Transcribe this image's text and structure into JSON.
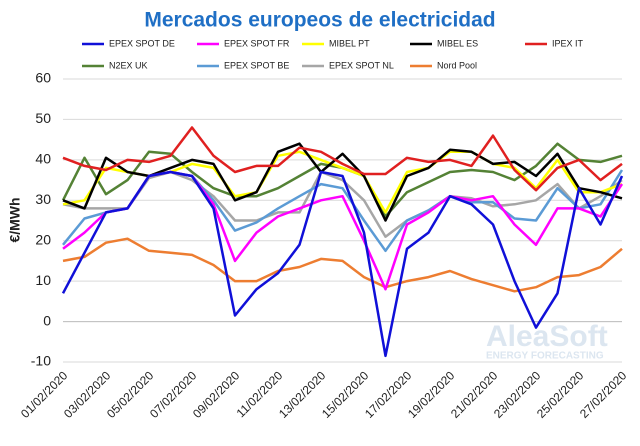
{
  "chart_data": {
    "type": "line",
    "title": "Mercados europeos de electricidad",
    "y_label": "€/MWh",
    "annotations": [
      "AleaSoft",
      "ENERGY FORECASTING"
    ],
    "categories": [
      "01/02/2020",
      null,
      "03/02/2020",
      null,
      "05/02/2020",
      null,
      "07/02/2020",
      null,
      "09/02/2020",
      null,
      "11/02/2020",
      null,
      "13/02/2020",
      null,
      "15/02/2020",
      null,
      "17/02/2020",
      null,
      "19/02/2020",
      null,
      "21/02/2020",
      null,
      "23/02/2020",
      null,
      "25/02/2020",
      null,
      "27/02/2020"
    ],
    "ylim": [
      -10,
      60
    ],
    "yticks": [
      -10,
      0,
      10,
      20,
      30,
      40,
      50,
      60
    ],
    "grid": true,
    "series": [
      {
        "name": "EPEX SPOT DE",
        "color": "#1010d8",
        "values": [
          7,
          17,
          27,
          28,
          36,
          37,
          36,
          28,
          1.5,
          8,
          12,
          19,
          37,
          36,
          22,
          -8.5,
          18,
          22,
          31,
          29,
          24,
          10,
          -1.5,
          7,
          33,
          24,
          36
        ]
      },
      {
        "name": "EPEX SPOT FR",
        "color": "#ff00ff",
        "values": [
          18,
          22,
          27,
          28,
          36,
          37,
          36,
          29,
          15,
          22,
          26,
          28,
          30,
          31,
          20,
          8,
          24,
          27,
          31,
          30,
          31,
          24,
          19,
          28,
          28,
          26,
          34
        ]
      },
      {
        "name": "MIBEL PT",
        "color": "#ffff00",
        "values": [
          29,
          30,
          38,
          37,
          36,
          37,
          39,
          38,
          31,
          32,
          41,
          42,
          40,
          38,
          36,
          27,
          37,
          38,
          42,
          42,
          39,
          38,
          33,
          40,
          32,
          32,
          34
        ]
      },
      {
        "name": "MIBEL ES",
        "color": "#000000",
        "values": [
          30,
          28,
          40.5,
          37,
          36,
          38,
          40,
          39,
          30,
          32,
          42,
          44,
          37,
          41.5,
          36,
          25,
          36,
          38,
          42.5,
          42,
          39,
          39.5,
          36,
          41.5,
          33,
          32,
          30.5
        ]
      },
      {
        "name": "IPEX IT",
        "color": "#e02020",
        "values": [
          40.5,
          38.5,
          37.5,
          40,
          39.5,
          41,
          48,
          41,
          37,
          38.5,
          38.5,
          43,
          42,
          39,
          36.5,
          36.5,
          40.5,
          39.5,
          40,
          38.5,
          46,
          37.5,
          32.5,
          38,
          40,
          35,
          39
        ]
      },
      {
        "name": "N2EX UK",
        "color": "#548235",
        "values": [
          30,
          40.5,
          31.5,
          35,
          42,
          41.5,
          37,
          33,
          31,
          31,
          33,
          36,
          39,
          38,
          36,
          26,
          32,
          34.5,
          37,
          37.5,
          37,
          35,
          38.5,
          44,
          40,
          39.5,
          41
        ]
      },
      {
        "name": "EPEX SPOT BE",
        "color": "#5b9bd5",
        "values": [
          19,
          25.5,
          27,
          28,
          36,
          37,
          36,
          30,
          22.5,
          24.5,
          28,
          31,
          34,
          33,
          25,
          17.5,
          25,
          27.5,
          31,
          29.5,
          29.5,
          25.5,
          25,
          33,
          28,
          29,
          37.5
        ]
      },
      {
        "name": "EPEX SPOT NL",
        "color": "#a6a6a6",
        "values": [
          29,
          28,
          28,
          28,
          35.5,
          37,
          35,
          31,
          25,
          25,
          27,
          27,
          37,
          35,
          30,
          21,
          25,
          27.5,
          31,
          30.5,
          28.5,
          29,
          30,
          34,
          28,
          31,
          35
        ]
      },
      {
        "name": "Nord Pool",
        "color": "#ed7d31",
        "values": [
          15,
          16,
          19.5,
          20.5,
          17.5,
          17,
          16.5,
          14,
          10,
          10,
          12.5,
          13.5,
          15.5,
          15,
          11,
          8.5,
          10,
          11,
          12.5,
          10.5,
          9,
          7.5,
          8.5,
          11,
          11.5,
          13.5,
          18
        ]
      }
    ]
  }
}
